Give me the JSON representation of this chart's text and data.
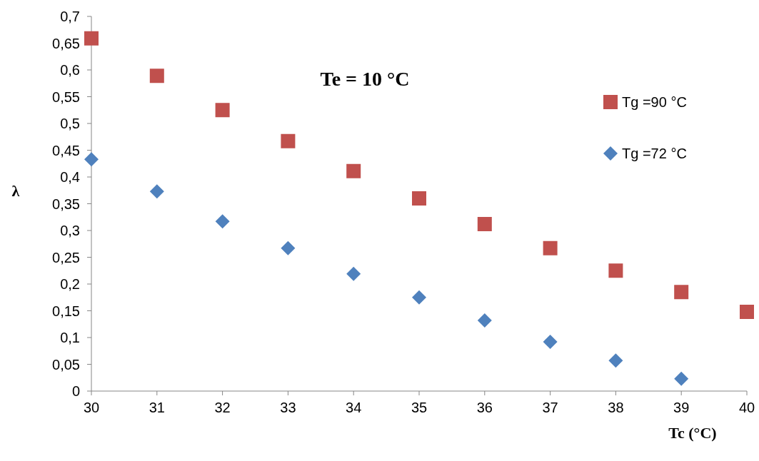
{
  "chart_data": {
    "type": "scatter",
    "xlabel": "Tc (°C)",
    "ylabel": "λ",
    "annotations": [
      "Te = 10 °C"
    ],
    "x": [
      30,
      31,
      32,
      33,
      34,
      35,
      36,
      37,
      38,
      39,
      40
    ],
    "series": [
      {
        "name": "Tg =90 °C",
        "color": "#c0504d",
        "marker": "square",
        "values": [
          0.659,
          0.589,
          0.525,
          0.467,
          0.411,
          0.36,
          0.312,
          0.267,
          0.225,
          0.185,
          0.148
        ]
      },
      {
        "name": "Tg =72 °C",
        "color": "#4f81bd",
        "marker": "diamond",
        "values": [
          0.433,
          0.373,
          0.317,
          0.267,
          0.219,
          0.175,
          0.132,
          0.092,
          0.057,
          0.023,
          null
        ]
      }
    ],
    "xlim": [
      30,
      40
    ],
    "xticks": [
      30,
      31,
      32,
      33,
      34,
      35,
      36,
      37,
      38,
      39,
      40
    ],
    "ylim": [
      0,
      0.7
    ],
    "yticks": [
      0,
      {
        "value": 0.05,
        "label": "0,05"
      },
      {
        "value": 0.1,
        "label": "0,1"
      },
      {
        "value": 0.15,
        "label": "0,15"
      },
      {
        "value": 0.2,
        "label": "0,2"
      },
      {
        "value": 0.25,
        "label": "0,25"
      },
      {
        "value": 0.3,
        "label": "0,3"
      },
      {
        "value": 0.35,
        "label": "0,35"
      },
      {
        "value": 0.4,
        "label": "0,4"
      },
      {
        "value": 0.45,
        "label": "0,45"
      },
      {
        "value": 0.5,
        "label": "0,5"
      },
      {
        "value": 0.55,
        "label": "0,55"
      },
      {
        "value": 0.6,
        "label": "0,6"
      },
      {
        "value": 0.65,
        "label": "0,65"
      },
      {
        "value": 0.7,
        "label": "0,7"
      }
    ],
    "legend": "top right"
  }
}
